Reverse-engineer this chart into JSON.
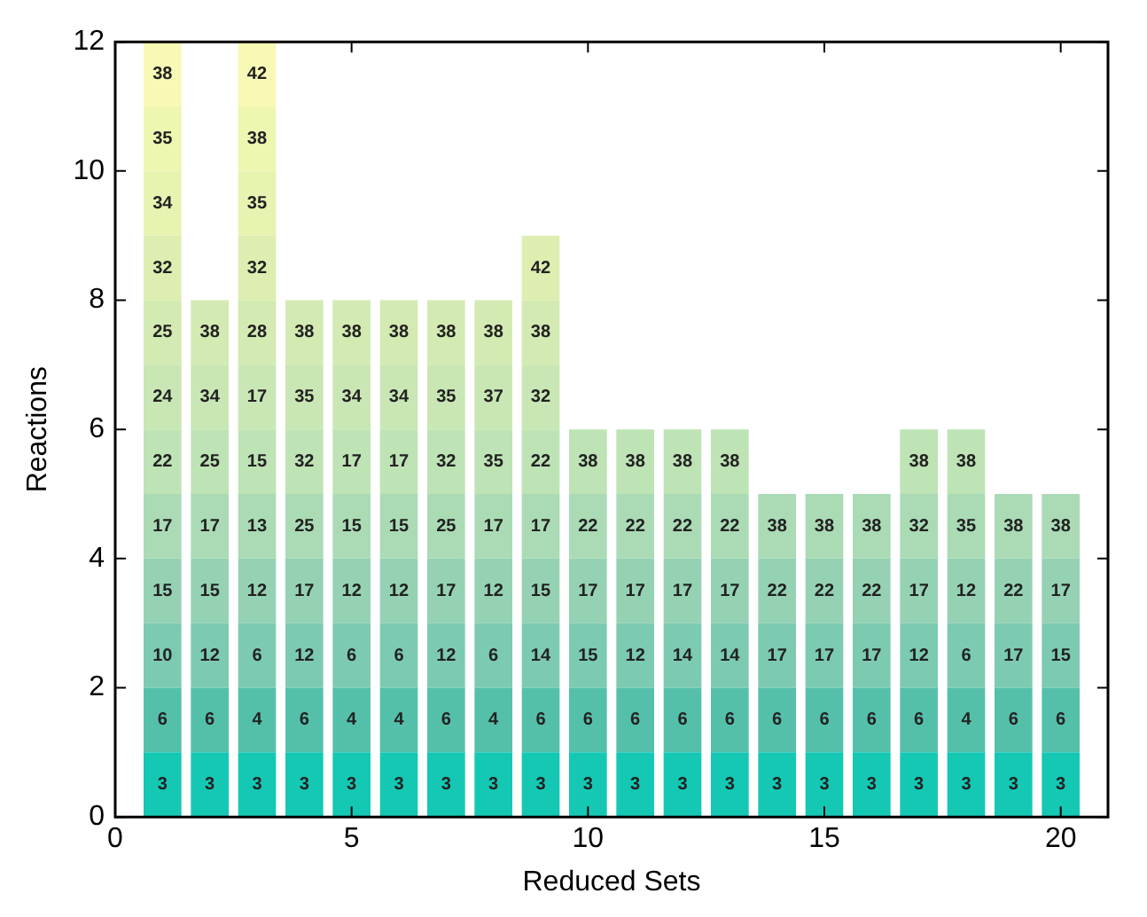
{
  "chart_data": {
    "type": "bar",
    "stacked": true,
    "xlabel": "Reduced Sets",
    "ylabel": "Reactions",
    "x": [
      1,
      2,
      3,
      4,
      5,
      6,
      7,
      8,
      9,
      10,
      11,
      12,
      13,
      14,
      15,
      16,
      17,
      18,
      19,
      20
    ],
    "xlim": [
      0,
      21
    ],
    "xticks": [
      0,
      5,
      10,
      15,
      20
    ],
    "ylim": [
      0,
      12
    ],
    "yticks": [
      0,
      2,
      4,
      6,
      8,
      10,
      12
    ],
    "grid": false,
    "legend": false,
    "series": [
      {
        "color": "#14c8b4",
        "values": [
          1,
          1,
          1,
          1,
          1,
          1,
          1,
          1,
          1,
          1,
          1,
          1,
          1,
          1,
          1,
          1,
          1,
          1,
          1,
          1
        ]
      },
      {
        "color": "#55c0aa",
        "values": [
          1,
          1,
          1,
          1,
          1,
          1,
          1,
          1,
          1,
          1,
          1,
          1,
          1,
          1,
          1,
          1,
          1,
          1,
          1,
          1
        ]
      },
      {
        "color": "#7ccab2",
        "values": [
          1,
          1,
          1,
          1,
          1,
          1,
          1,
          1,
          1,
          1,
          1,
          1,
          1,
          1,
          1,
          1,
          1,
          1,
          1,
          1
        ]
      },
      {
        "color": "#95d2b4",
        "values": [
          1,
          1,
          1,
          1,
          1,
          1,
          1,
          1,
          1,
          1,
          1,
          1,
          1,
          1,
          1,
          1,
          1,
          1,
          1,
          1
        ]
      },
      {
        "color": "#aadbb5",
        "values": [
          1,
          1,
          1,
          1,
          1,
          1,
          1,
          1,
          1,
          1,
          1,
          1,
          1,
          1,
          1,
          1,
          1,
          1,
          1,
          1
        ]
      },
      {
        "color": "#bee3b5",
        "values": [
          1,
          1,
          1,
          1,
          1,
          1,
          1,
          1,
          1,
          1,
          1,
          1,
          1,
          null,
          null,
          null,
          1,
          1,
          null,
          null
        ]
      },
      {
        "color": "#c9e7b4",
        "values": [
          1,
          1,
          1,
          1,
          1,
          1,
          1,
          1,
          1,
          null,
          null,
          null,
          null,
          null,
          null,
          null,
          null,
          null,
          null,
          null
        ]
      },
      {
        "color": "#d3eab2",
        "values": [
          1,
          1,
          1,
          1,
          1,
          1,
          1,
          1,
          1,
          null,
          null,
          null,
          null,
          null,
          null,
          null,
          null,
          null,
          null,
          null
        ]
      },
      {
        "color": "#ddeeb0",
        "values": [
          1,
          null,
          1,
          null,
          null,
          null,
          null,
          null,
          1,
          null,
          null,
          null,
          null,
          null,
          null,
          null,
          null,
          null,
          null,
          null
        ]
      },
      {
        "color": "#e7f3b0",
        "values": [
          1,
          null,
          1,
          null,
          null,
          null,
          null,
          null,
          null,
          null,
          null,
          null,
          null,
          null,
          null,
          null,
          null,
          null,
          null,
          null
        ]
      },
      {
        "color": "#eff6b0",
        "values": [
          1,
          null,
          1,
          null,
          null,
          null,
          null,
          null,
          null,
          null,
          null,
          null,
          null,
          null,
          null,
          null,
          null,
          null,
          null,
          null
        ]
      },
      {
        "color": "#f8f9b4",
        "values": [
          1,
          null,
          1,
          null,
          null,
          null,
          null,
          null,
          null,
          null,
          null,
          null,
          null,
          null,
          null,
          null,
          null,
          null,
          null,
          null
        ]
      }
    ],
    "annotations": [
      {
        "text": "3",
        "x": 1,
        "y": 1
      },
      {
        "text": "6",
        "x": 1,
        "y": 2
      },
      {
        "text": "10",
        "x": 1,
        "y": 3
      },
      {
        "text": "15",
        "x": 1,
        "y": 4
      },
      {
        "text": "17",
        "x": 1,
        "y": 5
      },
      {
        "text": "22",
        "x": 1,
        "y": 6
      },
      {
        "text": "24",
        "x": 1,
        "y": 7
      },
      {
        "text": "25",
        "x": 1,
        "y": 8
      },
      {
        "text": "32",
        "x": 1,
        "y": 9
      },
      {
        "text": "34",
        "x": 1,
        "y": 10
      },
      {
        "text": "35",
        "x": 1,
        "y": 11
      },
      {
        "text": "38",
        "x": 1,
        "y": 12
      },
      {
        "text": "3",
        "x": 2,
        "y": 1
      },
      {
        "text": "6",
        "x": 2,
        "y": 2
      },
      {
        "text": "12",
        "x": 2,
        "y": 3
      },
      {
        "text": "15",
        "x": 2,
        "y": 4
      },
      {
        "text": "17",
        "x": 2,
        "y": 5
      },
      {
        "text": "25",
        "x": 2,
        "y": 6
      },
      {
        "text": "34",
        "x": 2,
        "y": 7
      },
      {
        "text": "38",
        "x": 2,
        "y": 8
      },
      {
        "text": "3",
        "x": 3,
        "y": 1
      },
      {
        "text": "4",
        "x": 3,
        "y": 2
      },
      {
        "text": "6",
        "x": 3,
        "y": 3
      },
      {
        "text": "12",
        "x": 3,
        "y": 4
      },
      {
        "text": "13",
        "x": 3,
        "y": 5
      },
      {
        "text": "15",
        "x": 3,
        "y": 6
      },
      {
        "text": "17",
        "x": 3,
        "y": 7
      },
      {
        "text": "28",
        "x": 3,
        "y": 8
      },
      {
        "text": "32",
        "x": 3,
        "y": 9
      },
      {
        "text": "35",
        "x": 3,
        "y": 10
      },
      {
        "text": "38",
        "x": 3,
        "y": 11
      },
      {
        "text": "42",
        "x": 3,
        "y": 12
      },
      {
        "text": "3",
        "x": 4,
        "y": 1
      },
      {
        "text": "6",
        "x": 4,
        "y": 2
      },
      {
        "text": "12",
        "x": 4,
        "y": 3
      },
      {
        "text": "17",
        "x": 4,
        "y": 4
      },
      {
        "text": "25",
        "x": 4,
        "y": 5
      },
      {
        "text": "32",
        "x": 4,
        "y": 6
      },
      {
        "text": "35",
        "x": 4,
        "y": 7
      },
      {
        "text": "38",
        "x": 4,
        "y": 8
      },
      {
        "text": "3",
        "x": 5,
        "y": 1
      },
      {
        "text": "4",
        "x": 5,
        "y": 2
      },
      {
        "text": "6",
        "x": 5,
        "y": 3
      },
      {
        "text": "12",
        "x": 5,
        "y": 4
      },
      {
        "text": "15",
        "x": 5,
        "y": 5
      },
      {
        "text": "17",
        "x": 5,
        "y": 6
      },
      {
        "text": "34",
        "x": 5,
        "y": 7
      },
      {
        "text": "38",
        "x": 5,
        "y": 8
      },
      {
        "text": "3",
        "x": 6,
        "y": 1
      },
      {
        "text": "4",
        "x": 6,
        "y": 2
      },
      {
        "text": "6",
        "x": 6,
        "y": 3
      },
      {
        "text": "12",
        "x": 6,
        "y": 4
      },
      {
        "text": "15",
        "x": 6,
        "y": 5
      },
      {
        "text": "17",
        "x": 6,
        "y": 6
      },
      {
        "text": "34",
        "x": 6,
        "y": 7
      },
      {
        "text": "38",
        "x": 6,
        "y": 8
      },
      {
        "text": "3",
        "x": 7,
        "y": 1
      },
      {
        "text": "6",
        "x": 7,
        "y": 2
      },
      {
        "text": "12",
        "x": 7,
        "y": 3
      },
      {
        "text": "17",
        "x": 7,
        "y": 4
      },
      {
        "text": "25",
        "x": 7,
        "y": 5
      },
      {
        "text": "32",
        "x": 7,
        "y": 6
      },
      {
        "text": "35",
        "x": 7,
        "y": 7
      },
      {
        "text": "38",
        "x": 7,
        "y": 8
      },
      {
        "text": "3",
        "x": 8,
        "y": 1
      },
      {
        "text": "4",
        "x": 8,
        "y": 2
      },
      {
        "text": "6",
        "x": 8,
        "y": 3
      },
      {
        "text": "12",
        "x": 8,
        "y": 4
      },
      {
        "text": "17",
        "x": 8,
        "y": 5
      },
      {
        "text": "35",
        "x": 8,
        "y": 6
      },
      {
        "text": "37",
        "x": 8,
        "y": 7
      },
      {
        "text": "38",
        "x": 8,
        "y": 8
      },
      {
        "text": "3",
        "x": 9,
        "y": 1
      },
      {
        "text": "6",
        "x": 9,
        "y": 2
      },
      {
        "text": "14",
        "x": 9,
        "y": 3
      },
      {
        "text": "15",
        "x": 9,
        "y": 4
      },
      {
        "text": "17",
        "x": 9,
        "y": 5
      },
      {
        "text": "22",
        "x": 9,
        "y": 6
      },
      {
        "text": "32",
        "x": 9,
        "y": 7
      },
      {
        "text": "38",
        "x": 9,
        "y": 8
      },
      {
        "text": "42",
        "x": 9,
        "y": 9
      },
      {
        "text": "3",
        "x": 10,
        "y": 1
      },
      {
        "text": "6",
        "x": 10,
        "y": 2
      },
      {
        "text": "15",
        "x": 10,
        "y": 3
      },
      {
        "text": "17",
        "x": 10,
        "y": 4
      },
      {
        "text": "22",
        "x": 10,
        "y": 5
      },
      {
        "text": "38",
        "x": 10,
        "y": 6
      },
      {
        "text": "3",
        "x": 11,
        "y": 1
      },
      {
        "text": "6",
        "x": 11,
        "y": 2
      },
      {
        "text": "12",
        "x": 11,
        "y": 3
      },
      {
        "text": "17",
        "x": 11,
        "y": 4
      },
      {
        "text": "22",
        "x": 11,
        "y": 5
      },
      {
        "text": "38",
        "x": 11,
        "y": 6
      },
      {
        "text": "3",
        "x": 12,
        "y": 1
      },
      {
        "text": "6",
        "x": 12,
        "y": 2
      },
      {
        "text": "14",
        "x": 12,
        "y": 3
      },
      {
        "text": "17",
        "x": 12,
        "y": 4
      },
      {
        "text": "22",
        "x": 12,
        "y": 5
      },
      {
        "text": "38",
        "x": 12,
        "y": 6
      },
      {
        "text": "3",
        "x": 13,
        "y": 1
      },
      {
        "text": "6",
        "x": 13,
        "y": 2
      },
      {
        "text": "14",
        "x": 13,
        "y": 3
      },
      {
        "text": "17",
        "x": 13,
        "y": 4
      },
      {
        "text": "22",
        "x": 13,
        "y": 5
      },
      {
        "text": "38",
        "x": 13,
        "y": 6
      },
      {
        "text": "3",
        "x": 14,
        "y": 1
      },
      {
        "text": "6",
        "x": 14,
        "y": 2
      },
      {
        "text": "17",
        "x": 14,
        "y": 3
      },
      {
        "text": "22",
        "x": 14,
        "y": 4
      },
      {
        "text": "38",
        "x": 14,
        "y": 5
      },
      {
        "text": "3",
        "x": 15,
        "y": 1
      },
      {
        "text": "6",
        "x": 15,
        "y": 2
      },
      {
        "text": "17",
        "x": 15,
        "y": 3
      },
      {
        "text": "22",
        "x": 15,
        "y": 4
      },
      {
        "text": "38",
        "x": 15,
        "y": 5
      },
      {
        "text": "3",
        "x": 16,
        "y": 1
      },
      {
        "text": "6",
        "x": 16,
        "y": 2
      },
      {
        "text": "17",
        "x": 16,
        "y": 3
      },
      {
        "text": "22",
        "x": 16,
        "y": 4
      },
      {
        "text": "38",
        "x": 16,
        "y": 5
      },
      {
        "text": "3",
        "x": 17,
        "y": 1
      },
      {
        "text": "6",
        "x": 17,
        "y": 2
      },
      {
        "text": "12",
        "x": 17,
        "y": 3
      },
      {
        "text": "17",
        "x": 17,
        "y": 4
      },
      {
        "text": "32",
        "x": 17,
        "y": 5
      },
      {
        "text": "38",
        "x": 17,
        "y": 6
      },
      {
        "text": "3",
        "x": 18,
        "y": 1
      },
      {
        "text": "4",
        "x": 18,
        "y": 2
      },
      {
        "text": "6",
        "x": 18,
        "y": 3
      },
      {
        "text": "12",
        "x": 18,
        "y": 4
      },
      {
        "text": "35",
        "x": 18,
        "y": 5
      },
      {
        "text": "38",
        "x": 18,
        "y": 6
      },
      {
        "text": "3",
        "x": 19,
        "y": 1
      },
      {
        "text": "6",
        "x": 19,
        "y": 2
      },
      {
        "text": "17",
        "x": 19,
        "y": 3
      },
      {
        "text": "22",
        "x": 19,
        "y": 4
      },
      {
        "text": "38",
        "x": 19,
        "y": 5
      },
      {
        "text": "3",
        "x": 20,
        "y": 1
      },
      {
        "text": "6",
        "x": 20,
        "y": 2
      },
      {
        "text": "15",
        "x": 20,
        "y": 3
      },
      {
        "text": "17",
        "x": 20,
        "y": 4
      },
      {
        "text": "38",
        "x": 20,
        "y": 5
      }
    ]
  }
}
